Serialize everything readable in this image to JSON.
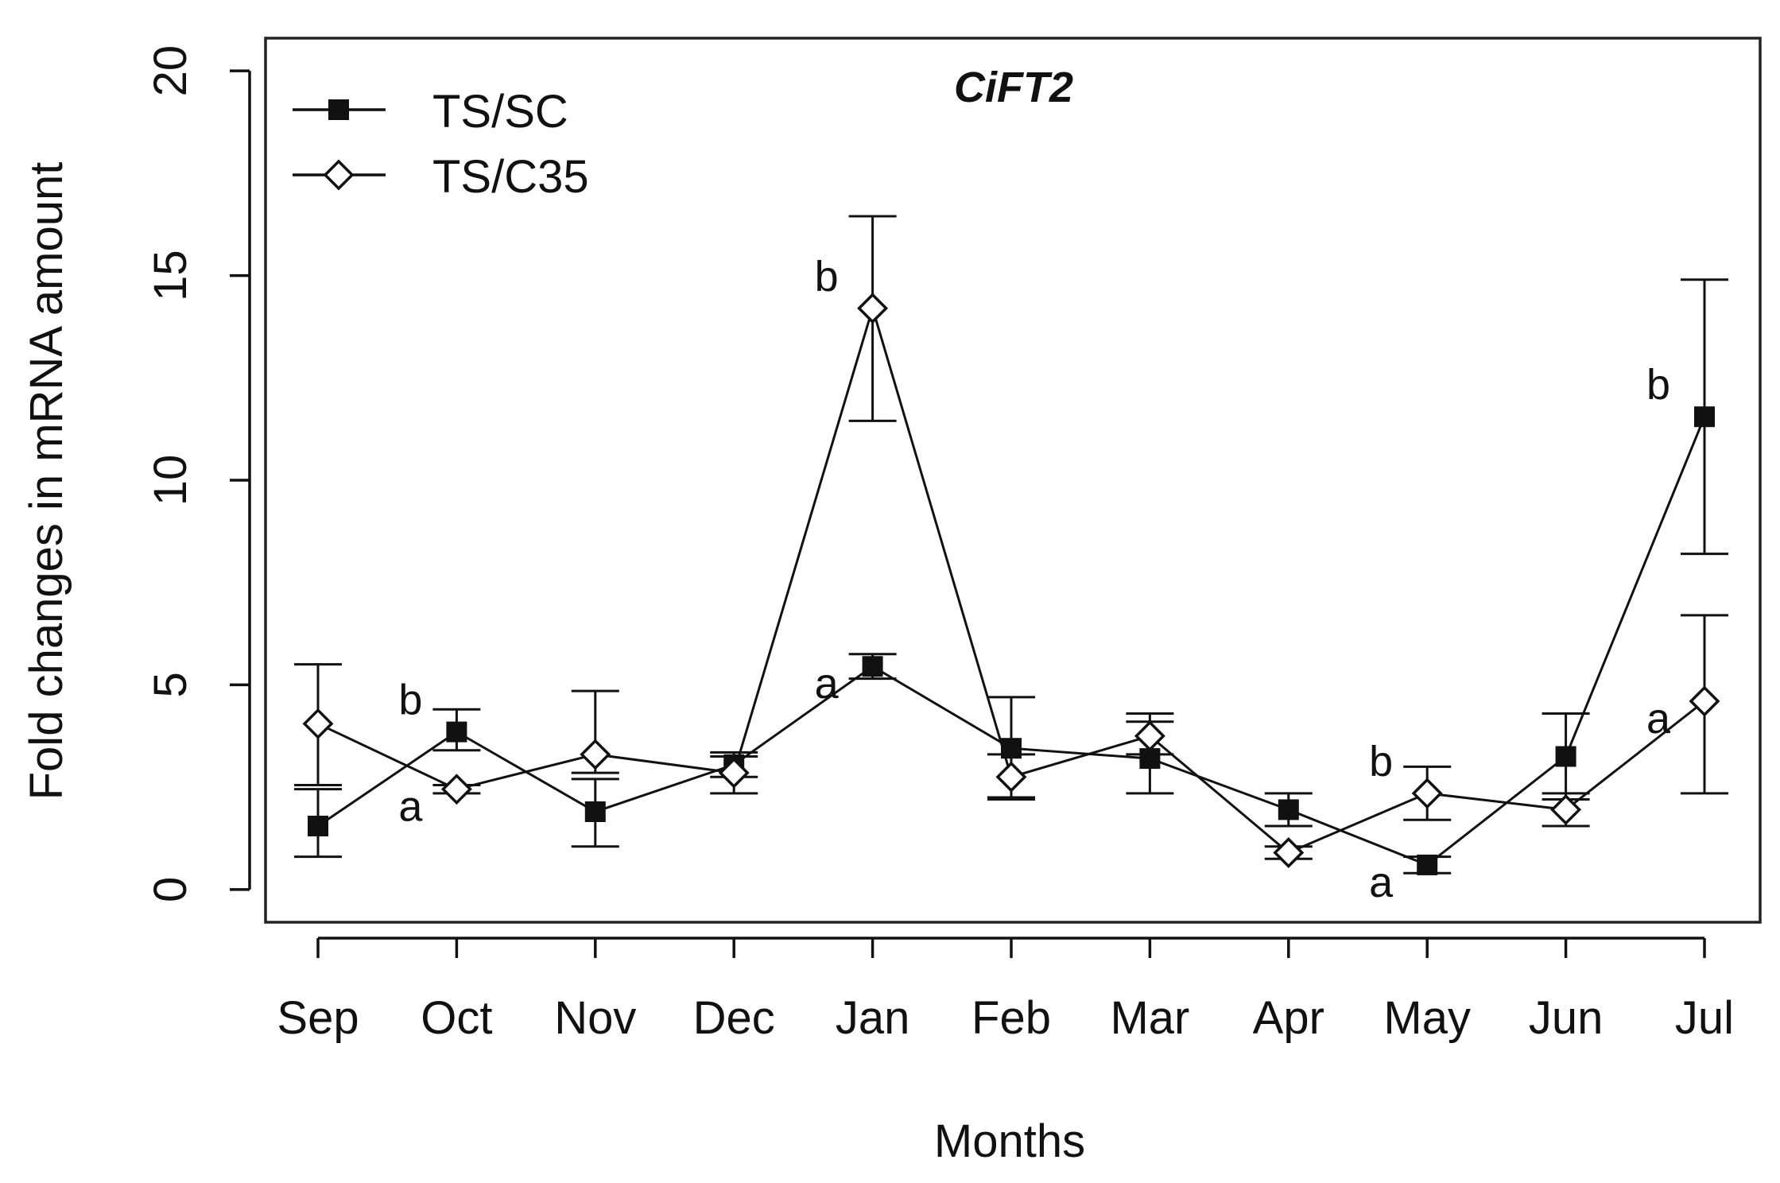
{
  "chart_data": {
    "type": "line",
    "title": "CiFT2",
    "xlabel": "Months",
    "ylabel": "Fold changes in mRNA amount",
    "categories": [
      "Sep",
      "Oct",
      "Nov",
      "Dec",
      "Jan",
      "Feb",
      "Mar",
      "Apr",
      "May",
      "Jun",
      "Jul"
    ],
    "ylim": [
      -0.8,
      20.8
    ],
    "yticks": [
      0,
      5,
      10,
      15,
      20
    ],
    "grid": false,
    "legend_position": "top-left",
    "series": [
      {
        "name": "TS/SC",
        "marker": "filled-square",
        "values": [
          1.55,
          3.85,
          1.9,
          3.05,
          5.45,
          3.45,
          3.2,
          1.95,
          0.6,
          3.25,
          11.55
        ],
        "err_low": [
          0.8,
          3.4,
          1.05,
          2.75,
          5.15,
          2.2,
          2.35,
          1.55,
          0.4,
          2.2,
          8.2
        ],
        "err_high": [
          2.45,
          4.4,
          2.7,
          3.35,
          5.75,
          4.7,
          4.1,
          2.35,
          0.8,
          4.3,
          14.9
        ],
        "sig_labels": [
          null,
          "b",
          null,
          null,
          "a",
          null,
          null,
          null,
          "a",
          null,
          "b"
        ]
      },
      {
        "name": "TS/C35",
        "marker": "open-diamond",
        "values": [
          4.05,
          2.45,
          3.3,
          2.85,
          14.2,
          2.75,
          3.75,
          0.9,
          2.35,
          1.95,
          4.6
        ],
        "err_low": [
          2.55,
          2.35,
          2.85,
          2.35,
          11.45,
          2.25,
          3.3,
          0.75,
          1.7,
          1.55,
          2.35
        ],
        "err_high": [
          5.5,
          2.55,
          4.85,
          3.25,
          16.45,
          3.3,
          4.3,
          1.05,
          3.0,
          2.35,
          6.7
        ],
        "sig_labels": [
          null,
          "a",
          null,
          null,
          "b",
          null,
          null,
          null,
          "b",
          null,
          "a"
        ]
      }
    ]
  }
}
